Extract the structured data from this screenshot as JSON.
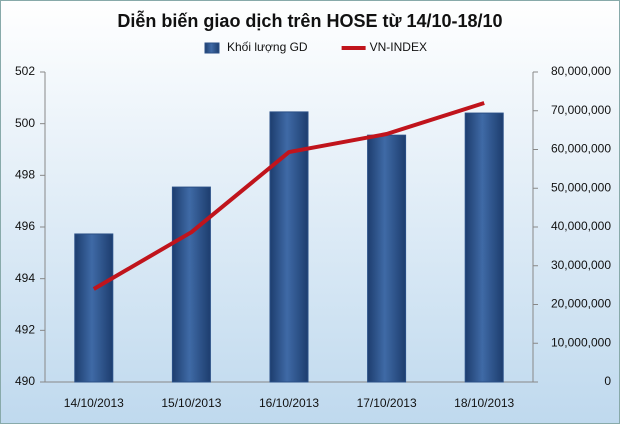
{
  "chart_data": {
    "type": "bar",
    "title": "Diễn biến giao dịch trên HOSE từ 14/10-18/10",
    "categories": [
      "14/10/2013",
      "15/10/2013",
      "16/10/2013",
      "17/10/2013",
      "18/10/2013"
    ],
    "series": [
      {
        "name": "Khối lượng GD",
        "type": "bar",
        "axis": "y2",
        "color": "#2a4f86",
        "values": [
          38200000,
          50300000,
          69700000,
          63700000,
          69400000
        ]
      },
      {
        "name": "VN-INDEX",
        "type": "line",
        "axis": "y",
        "color": "#c0141c",
        "values": [
          493.6,
          495.8,
          498.9,
          499.6,
          500.8
        ]
      }
    ],
    "ylim": [
      490,
      502
    ],
    "yticks": [
      490,
      492,
      494,
      496,
      498,
      500,
      502
    ],
    "y2lim": [
      0,
      80000000
    ],
    "y2ticks": [
      0,
      {
        "value": 10000000,
        "label": "10,000,000"
      },
      {
        "value": 20000000,
        "label": "20,000,000"
      },
      {
        "value": 30000000,
        "label": "30,000,000"
      },
      {
        "value": 40000000,
        "label": "40,000,000"
      },
      {
        "value": 50000000,
        "label": "50,000,000"
      },
      {
        "value": 60000000,
        "label": "60,000,000"
      },
      {
        "value": 70000000,
        "label": "70,000,000"
      },
      {
        "value": 80000000,
        "label": "80,000,000"
      }
    ],
    "legend": "top"
  }
}
